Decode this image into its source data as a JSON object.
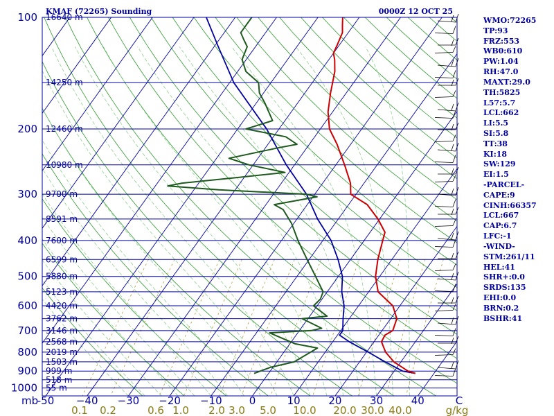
{
  "header": {
    "station": "KMAF (72265) Sounding",
    "time": "0000Z 12 OCT 25"
  },
  "chart_data": {
    "type": "skew-t",
    "pressure_labels": [
      "100",
      "200",
      "300",
      "400",
      "500",
      "600",
      "700",
      "800",
      "900",
      "1000"
    ],
    "pressure_unit_label": "mb",
    "temperature_ticks": [
      "-50",
      "−40",
      "−30",
      "−20",
      "−10",
      "0",
      "10",
      "20",
      "30",
      "40",
      "C"
    ],
    "mixing_ratio_ticks": [
      "0.1",
      "0.2",
      "0.6",
      "1.0",
      "2.0",
      "3.0",
      "5.0",
      "10.0",
      "20.0",
      "30.0",
      "40.0",
      "g/kg"
    ],
    "height_labels": [
      {
        "p": 100,
        "label": "16640 m"
      },
      {
        "p": 150,
        "label": "14250 m"
      },
      {
        "p": 200,
        "label": "12460 m"
      },
      {
        "p": 250,
        "label": "10980 m"
      },
      {
        "p": 300,
        "label": "9700 m"
      },
      {
        "p": 350,
        "label": "8591 m"
      },
      {
        "p": 400,
        "label": "7600 m"
      },
      {
        "p": 450,
        "label": "6599 m"
      },
      {
        "p": 500,
        "label": "5880 m"
      },
      {
        "p": 550,
        "label": "5123 m"
      },
      {
        "p": 600,
        "label": "4420 m"
      },
      {
        "p": 650,
        "label": "3762 m"
      },
      {
        "p": 700,
        "label": "3146 m"
      },
      {
        "p": 750,
        "label": "2568 m"
      },
      {
        "p": 800,
        "label": "2019 m"
      },
      {
        "p": 850,
        "label": "1503 m"
      },
      {
        "p": 900,
        "label": "999 m"
      },
      {
        "p": 950,
        "label": "518 m"
      },
      {
        "p": 1000,
        "label": "55 m"
      }
    ],
    "temperature_profile_c": [
      [
        913,
        35.5
      ],
      [
        900,
        33.3
      ],
      [
        850,
        28.3
      ],
      [
        800,
        24.6
      ],
      [
        750,
        21.8
      ],
      [
        720,
        21.5
      ],
      [
        700,
        22.6
      ],
      [
        650,
        21.5
      ],
      [
        600,
        18.3
      ],
      [
        550,
        12.3
      ],
      [
        500,
        9.0
      ],
      [
        450,
        6.6
      ],
      [
        400,
        4.5
      ],
      [
        380,
        3.6
      ],
      [
        350,
        -0.4
      ],
      [
        320,
        -5.5
      ],
      [
        300,
        -11.3
      ],
      [
        280,
        -13.3
      ],
      [
        250,
        -17.9
      ],
      [
        220,
        -23.3
      ],
      [
        200,
        -27.8
      ],
      [
        180,
        -31.1
      ],
      [
        160,
        -33.8
      ],
      [
        140,
        -36.5
      ],
      [
        130,
        -38.6
      ],
      [
        125,
        -40.0
      ],
      [
        118,
        -40.6
      ],
      [
        110,
        -41.4
      ],
      [
        105,
        -42.7
      ],
      [
        100,
        -44.0
      ]
    ],
    "dewpoint_profile_c": [
      [
        913,
        -3.5
      ],
      [
        880,
        -0.7
      ],
      [
        850,
        4.2
      ],
      [
        780,
        7.4
      ],
      [
        760,
        1.3
      ],
      [
        710,
        -6.8
      ],
      [
        700,
        2.9
      ],
      [
        690,
        5.0
      ],
      [
        650,
        -1.4
      ],
      [
        640,
        4.2
      ],
      [
        600,
        -0.9
      ],
      [
        575,
        -0.4
      ],
      [
        550,
        -1.0
      ],
      [
        500,
        -5.5
      ],
      [
        450,
        -10.5
      ],
      [
        400,
        -16.0
      ],
      [
        360,
        -20.5
      ],
      [
        330,
        -25.0
      ],
      [
        320,
        -28.0
      ],
      [
        305,
        -19.0
      ],
      [
        300,
        -22.0
      ],
      [
        292,
        -44.0
      ],
      [
        285,
        -57.0
      ],
      [
        280,
        -54.0
      ],
      [
        270,
        -41.0
      ],
      [
        262,
        -31.0
      ],
      [
        250,
        -41.0
      ],
      [
        240,
        -47.0
      ],
      [
        225,
        -37.0
      ],
      [
        220,
        -33.0
      ],
      [
        210,
        -37.0
      ],
      [
        200,
        -48.0
      ],
      [
        190,
        -43.0
      ],
      [
        170,
        -48.0
      ],
      [
        160,
        -51.0
      ],
      [
        150,
        -53.0
      ],
      [
        140,
        -58.0
      ],
      [
        130,
        -61.0
      ],
      [
        120,
        -62.0
      ],
      [
        115,
        -64.0
      ],
      [
        110,
        -66.0
      ],
      [
        105,
        -66.0
      ],
      [
        100,
        -66.0
      ]
    ],
    "parcel_profile_c": [
      [
        913,
        35.5
      ],
      [
        900,
        32.0
      ],
      [
        850,
        26.2
      ],
      [
        800,
        20.4
      ],
      [
        750,
        14.0
      ],
      [
        720,
        10.5
      ],
      [
        700,
        10.5
      ],
      [
        650,
        8.5
      ],
      [
        600,
        6.5
      ],
      [
        550,
        3.5
      ],
      [
        500,
        1.0
      ],
      [
        450,
        -3.0
      ],
      [
        400,
        -8.0
      ],
      [
        350,
        -15.0
      ],
      [
        300,
        -22.0
      ],
      [
        250,
        -32.0
      ],
      [
        200,
        -43.0
      ],
      [
        150,
        -59.0
      ],
      [
        120,
        -69.0
      ],
      [
        100,
        -77.0
      ]
    ],
    "colors": {
      "temperature": "#cc0000",
      "dewpoint": "#1e5a1e",
      "parcel": "#0000a0",
      "isobar": "#0000a0",
      "isotherm": "#0000a0",
      "dry_adiabat": "#2f9a2f",
      "moist_adiabat": "#8fd08f",
      "mixing_ratio": "#b0a040",
      "wind_barb": "#000000"
    }
  },
  "indices": [
    "WMO:72265",
    "TP:93",
    "FRZ:553",
    "WB0:610",
    "PW:1.04",
    "RH:47.0",
    "MAXT:29.0",
    "TH:5825",
    "L57:5.7",
    "LCL:662",
    "LI:5.5",
    "SI:5.8",
    "TT:38",
    "KI:18",
    "SW:129",
    "EI:1.5",
    "-PARCEL-",
    "CAPE:9",
    "CINH:66357",
    "LCL:667",
    "CAP:6.7",
    "LFC:-1",
    "-WIND-",
    "STM:261/11",
    "HEL:41",
    "SHR+:0.0",
    "SRDS:135",
    "EHI:0.0",
    "BRN:0.2",
    "BSHR:41"
  ]
}
